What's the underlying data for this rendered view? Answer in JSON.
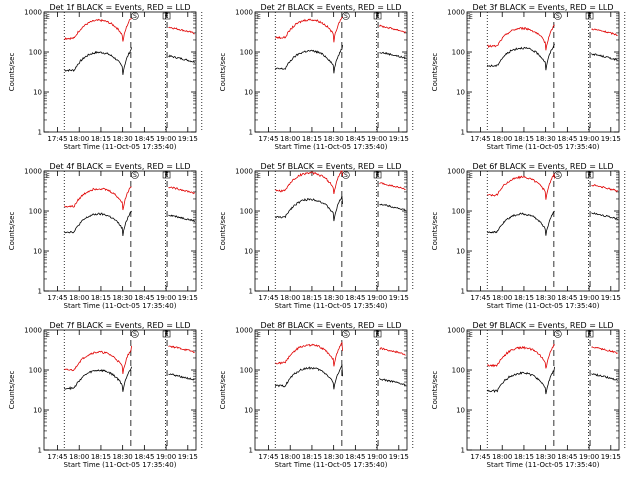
{
  "chart_data": [
    {
      "type": "line",
      "title": "Det 1f BLACK = Events, RED = LLD",
      "xlabel": "Start Time (11-Oct-05 17:35:40)",
      "ylabel": "Counts/sec",
      "yscale": "log",
      "ylim": [
        1,
        1000
      ],
      "xlim_min": [
        -10,
        45
      ],
      "xticks": [
        "17:45",
        "18:00",
        "18:15",
        "18:30",
        "18:45",
        "19:00",
        "19:15"
      ],
      "yticks": [
        "1",
        "10",
        "100",
        "1000"
      ],
      "markers": {
        "dotted": [
          0,
          70,
          95
        ],
        "dashed": [
          60,
          85
        ]
      },
      "flags": [
        "S",
        "E"
      ],
      "series": [
        {
          "name": "Events",
          "color": "#000000",
          "base": 35,
          "peak": 130,
          "trough_t": 5,
          "peak_t": 40,
          "post": 80
        },
        {
          "name": "LLD",
          "color": "#e00000",
          "base": 220,
          "peak": 700,
          "trough_t": 5,
          "peak_t": 40,
          "post": 420
        }
      ]
    },
    {
      "type": "line",
      "title": "Det 2f BLACK = Events, RED = LLD",
      "xlabel": "Start Time (11-Oct-05 17:35:40)",
      "ylabel": "Counts/sec",
      "yscale": "log",
      "ylim": [
        1,
        1000
      ],
      "xticks": [
        "17:45",
        "18:00",
        "18:15",
        "18:30",
        "18:45",
        "19:00",
        "19:15"
      ],
      "yticks": [
        "1",
        "10",
        "100",
        "1000"
      ],
      "markers": {
        "dotted": [
          0,
          70,
          95
        ],
        "dashed": [
          60,
          85
        ]
      },
      "flags": [
        "S",
        "E"
      ],
      "series": [
        {
          "name": "Events",
          "color": "#000000",
          "base": 38,
          "peak": 150,
          "trough_t": 5,
          "peak_t": 40,
          "post": 100
        },
        {
          "name": "LLD",
          "color": "#e00000",
          "base": 230,
          "peak": 750,
          "trough_t": 5,
          "peak_t": 40,
          "post": 450
        }
      ]
    },
    {
      "type": "line",
      "title": "Det 3f BLACK = Events, RED = LLD",
      "xlabel": "Start Time (11-Oct-05 17:35:40)",
      "ylabel": "Counts/sec",
      "yscale": "log",
      "ylim": [
        1,
        1000
      ],
      "xticks": [
        "17:45",
        "18:00",
        "18:15",
        "18:30",
        "18:45",
        "19:00",
        "19:15"
      ],
      "yticks": [
        "1",
        "10",
        "100",
        "1000"
      ],
      "markers": {
        "dotted": [
          0,
          70,
          95
        ],
        "dashed": [
          60,
          85
        ]
      },
      "flags": [
        "S",
        "E"
      ],
      "series": [
        {
          "name": "Events",
          "color": "#000000",
          "base": 45,
          "peak": 160,
          "trough_t": 5,
          "peak_t": 40,
          "post": 90
        },
        {
          "name": "LLD",
          "color": "#e00000",
          "base": 140,
          "peak": 480,
          "trough_t": 5,
          "peak_t": 40,
          "post": 380
        }
      ]
    },
    {
      "type": "line",
      "title": "Det 4f BLACK = Events, RED = LLD",
      "xlabel": "Start Time (11-Oct-05 17:35:40)",
      "ylabel": "Counts/sec",
      "yscale": "log",
      "ylim": [
        1,
        1000
      ],
      "xticks": [
        "17:45",
        "18:00",
        "18:15",
        "18:30",
        "18:45",
        "19:00",
        "19:15"
      ],
      "yticks": [
        "1",
        "10",
        "100",
        "1000"
      ],
      "markers": {
        "dotted": [
          0,
          70,
          95
        ],
        "dashed": [
          60,
          85
        ]
      },
      "flags": [
        "S",
        "E"
      ],
      "series": [
        {
          "name": "Events",
          "color": "#000000",
          "base": 30,
          "peak": 100,
          "trough_t": 5,
          "peak_t": 40,
          "post": 80
        },
        {
          "name": "LLD",
          "color": "#e00000",
          "base": 130,
          "peak": 400,
          "trough_t": 5,
          "peak_t": 40,
          "post": 400
        }
      ]
    },
    {
      "type": "line",
      "title": "Det 5f BLACK = Events, RED = LLD",
      "xlabel": "Start Time (11-Oct-05 17:35:40)",
      "ylabel": "Counts/sec",
      "yscale": "log",
      "ylim": [
        1,
        1000
      ],
      "xticks": [
        "17:45",
        "18:00",
        "18:15",
        "18:30",
        "18:45",
        "19:00",
        "19:15"
      ],
      "yticks": [
        "1",
        "10",
        "100",
        "1000"
      ],
      "markers": {
        "dotted": [
          0,
          70,
          95
        ],
        "dashed": [
          60,
          85
        ]
      },
      "flags": [
        "S",
        "E"
      ],
      "series": [
        {
          "name": "Events",
          "color": "#000000",
          "base": 70,
          "peak": 150,
          "trough_t": 5,
          "peak_t": 40,
          "post": 150
        },
        {
          "name": "LLD",
          "color": "#e00000",
          "base": 320,
          "peak": 750,
          "trough_t": 5,
          "peak_t": 40,
          "post": 500
        }
      ]
    },
    {
      "type": "line",
      "title": "Det 6f BLACK = Events, RED = LLD",
      "xlabel": "Start Time (11-Oct-05 17:35:40)",
      "ylabel": "Counts/sec",
      "yscale": "log",
      "ylim": [
        1,
        1000
      ],
      "xticks": [
        "17:45",
        "18:00",
        "18:15",
        "18:30",
        "18:45",
        "19:00",
        "19:15"
      ],
      "yticks": [
        "1",
        "10",
        "100",
        "1000"
      ],
      "markers": {
        "dotted": [
          0,
          70,
          95
        ],
        "dashed": [
          60,
          85
        ]
      },
      "flags": [
        "S",
        "E"
      ],
      "series": [
        {
          "name": "Events",
          "color": "#000000",
          "base": 30,
          "peak": 100,
          "trough_t": 5,
          "peak_t": 40,
          "post": 90
        },
        {
          "name": "LLD",
          "color": "#e00000",
          "base": 250,
          "peak": 650,
          "trough_t": 5,
          "peak_t": 40,
          "post": 450
        }
      ]
    },
    {
      "type": "line",
      "title": "Det 7f BLACK = Events, RED = LLD",
      "xlabel": "Start Time (11-Oct-05 17:35:40)",
      "ylabel": "Counts/sec",
      "yscale": "log",
      "ylim": [
        1,
        1000
      ],
      "xticks": [
        "17:45",
        "18:00",
        "18:15",
        "18:30",
        "18:45",
        "19:00",
        "19:15"
      ],
      "yticks": [
        "1",
        "10",
        "100",
        "1000"
      ],
      "markers": {
        "dotted": [
          0,
          70,
          95
        ],
        "dashed": [
          60,
          85
        ]
      },
      "flags": [
        "S",
        "E"
      ],
      "series": [
        {
          "name": "Events",
          "color": "#000000",
          "base": 35,
          "peak": 120,
          "trough_t": 5,
          "peak_t": 40,
          "post": 80
        },
        {
          "name": "LLD",
          "color": "#e00000",
          "base": 100,
          "peak": 400,
          "trough_t": 5,
          "peak_t": 40,
          "post": 400
        }
      ]
    },
    {
      "type": "line",
      "title": "Det 8f BLACK = Events, RED = LLD",
      "xlabel": "Start Time (11-Oct-05 17:35:40)",
      "ylabel": "Counts/sec",
      "yscale": "log",
      "ylim": [
        1,
        1000
      ],
      "xticks": [
        "17:45",
        "18:00",
        "18:15",
        "18:30",
        "18:45",
        "19:00",
        "19:15"
      ],
      "yticks": [
        "1",
        "10",
        "100",
        "1000"
      ],
      "markers": {
        "dotted": [
          0,
          70,
          95
        ],
        "dashed": [
          60,
          85
        ]
      },
      "flags": [
        "S",
        "E"
      ],
      "series": [
        {
          "name": "Events",
          "color": "#000000",
          "base": 40,
          "peak": 70,
          "trough_t": 5,
          "peak_t": 40,
          "post": 60
        },
        {
          "name": "LLD",
          "color": "#e00000",
          "base": 150,
          "peak": 300,
          "trough_t": 5,
          "peak_t": 40,
          "post": 350
        }
      ]
    },
    {
      "type": "line",
      "title": "Det 9f BLACK = Events, RED = LLD",
      "xlabel": "Start Time (11-Oct-05 17:35:40)",
      "ylabel": "Counts/sec",
      "yscale": "log",
      "ylim": [
        1,
        1000
      ],
      "xticks": [
        "17:45",
        "18:00",
        "18:15",
        "18:30",
        "18:45",
        "19:00",
        "19:15"
      ],
      "yticks": [
        "1",
        "10",
        "100",
        "1000"
      ],
      "markers": {
        "dotted": [
          0,
          70,
          95
        ],
        "dashed": [
          60,
          85
        ]
      },
      "flags": [
        "S",
        "E"
      ],
      "series": [
        {
          "name": "Events",
          "color": "#000000",
          "base": 30,
          "peak": 120,
          "trough_t": 5,
          "peak_t": 40,
          "post": 80
        },
        {
          "name": "LLD",
          "color": "#e00000",
          "base": 130,
          "peak": 420,
          "trough_t": 5,
          "peak_t": 40,
          "post": 380
        }
      ]
    }
  ]
}
